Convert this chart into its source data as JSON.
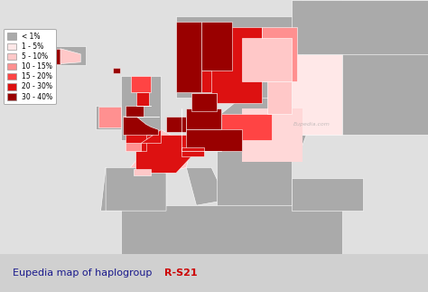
{
  "title_prefix": "Eupedia map of haplogroup ",
  "title_suffix": "R-S21",
  "title_suffix_color": "#cc0000",
  "title_prefix_color": "#1a1a8c",
  "background_color": "#d0d0d0",
  "ocean_color": "#e8e8e8",
  "legend_labels": [
    "< 1%",
    "1 - 5%",
    "5 - 10%",
    "10 - 15%",
    "15 - 20%",
    "20 - 30%",
    "30 - 40%"
  ],
  "legend_colors": [
    "#aaaaaa",
    "#ffe8e8",
    "#ffc8c8",
    "#ff9090",
    "#ff4444",
    "#dd1111",
    "#990000"
  ],
  "watermark": "Eupedia.com",
  "figsize": [
    4.74,
    3.23
  ],
  "dpi": 100,
  "map_xlim": [
    -30,
    55
  ],
  "map_ylim": [
    28,
    75
  ]
}
